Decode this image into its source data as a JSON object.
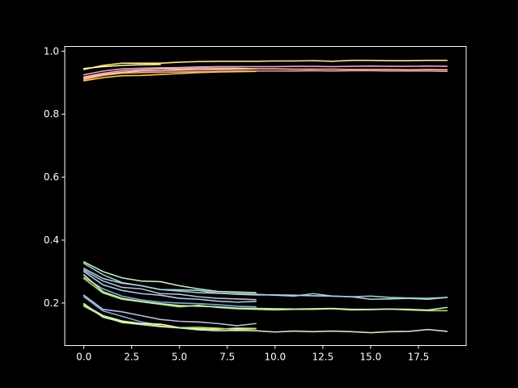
{
  "chart_data": {
    "type": "line",
    "title": "",
    "xlabel": "",
    "ylabel": "",
    "xlim": [
      -1.0,
      20.0
    ],
    "ylim": [
      0.065,
      1.015
    ],
    "grid": false,
    "legend": "none",
    "background": "#000000",
    "axis_color": "#ffffff",
    "x_ticks": [
      0.0,
      2.5,
      5.0,
      7.5,
      10.0,
      12.5,
      15.0,
      17.5
    ],
    "x_tick_labels": [
      "0.0",
      "2.5",
      "5.0",
      "7.5",
      "10.0",
      "12.5",
      "15.0",
      "17.5"
    ],
    "y_ticks": [
      0.2,
      0.4,
      0.6,
      0.8,
      1.0
    ],
    "y_tick_labels": [
      "0.2",
      "0.4",
      "0.6",
      "0.8",
      "1.0"
    ],
    "series": [
      {
        "color": "#fde68a",
        "x": [
          0,
          1,
          2,
          3,
          4,
          5,
          6,
          7,
          8,
          9,
          10,
          11,
          12,
          13,
          14,
          15,
          16,
          17,
          18,
          19
        ],
        "y": [
          0.942,
          0.955,
          0.962,
          0.962,
          0.962,
          0.965,
          0.967,
          0.968,
          0.968,
          0.968,
          0.969,
          0.969,
          0.97,
          0.968,
          0.971,
          0.971,
          0.97,
          0.97,
          0.971,
          0.971
        ]
      },
      {
        "color": "#fbb4ae",
        "x": [
          0,
          1,
          2,
          3,
          4,
          5,
          6,
          7,
          8,
          9,
          10,
          11,
          12,
          13,
          14,
          15,
          16,
          17,
          18,
          19
        ],
        "y": [
          0.918,
          0.93,
          0.938,
          0.941,
          0.944,
          0.944,
          0.946,
          0.946,
          0.946,
          0.944,
          0.944,
          0.943,
          0.943,
          0.943,
          0.942,
          0.942,
          0.942,
          0.941,
          0.942,
          0.941
        ]
      },
      {
        "color": "#e9a3c9",
        "x": [
          0,
          1,
          2,
          3,
          4,
          5,
          6,
          7,
          8,
          9,
          10,
          11,
          12,
          13,
          14,
          15,
          16,
          17,
          18,
          19
        ],
        "y": [
          0.925,
          0.937,
          0.944,
          0.946,
          0.947,
          0.948,
          0.95,
          0.951,
          0.951,
          0.951,
          0.951,
          0.952,
          0.952,
          0.951,
          0.952,
          0.953,
          0.952,
          0.952,
          0.953,
          0.952
        ]
      },
      {
        "color": "#f4a582",
        "x": [
          0,
          1,
          2,
          3,
          4,
          5,
          6,
          7,
          8,
          9,
          10,
          11,
          12,
          13,
          14,
          15,
          16,
          17,
          18,
          19
        ],
        "y": [
          0.91,
          0.923,
          0.93,
          0.932,
          0.933,
          0.934,
          0.935,
          0.936,
          0.937,
          0.937,
          0.937,
          0.937,
          0.938,
          0.937,
          0.938,
          0.938,
          0.937,
          0.937,
          0.937,
          0.936
        ]
      },
      {
        "color": "#fdcdac",
        "x": [
          0,
          1,
          2,
          3,
          4,
          5,
          6,
          7,
          8,
          9
        ],
        "y": [
          0.914,
          0.926,
          0.933,
          0.937,
          0.938,
          0.94,
          0.941,
          0.942,
          0.943,
          0.944
        ]
      },
      {
        "color": "#ffff99",
        "x": [
          0,
          1,
          2,
          3,
          4
        ],
        "y": [
          0.945,
          0.951,
          0.955,
          0.957,
          0.958
        ]
      },
      {
        "color": "#fec44f",
        "x": [
          0,
          1,
          2,
          3,
          4,
          5,
          6,
          7,
          8,
          9
        ],
        "y": [
          0.906,
          0.916,
          0.922,
          0.923,
          0.926,
          0.929,
          0.932,
          0.934,
          0.935,
          0.936
        ]
      },
      {
        "color": "#ccebc5",
        "x": [
          0,
          1,
          2,
          3,
          4,
          5,
          6,
          7,
          8,
          9
        ],
        "y": [
          0.331,
          0.3,
          0.28,
          0.27,
          0.268,
          0.255,
          0.245,
          0.237,
          0.235,
          0.233
        ]
      },
      {
        "color": "#8dd3c7",
        "x": [
          0,
          1,
          2,
          3,
          4,
          5,
          6,
          7,
          8,
          9,
          10,
          11,
          12,
          13,
          14,
          15,
          16,
          17,
          18,
          19
        ],
        "y": [
          0.326,
          0.29,
          0.265,
          0.255,
          0.243,
          0.238,
          0.233,
          0.231,
          0.23,
          0.228,
          0.225,
          0.222,
          0.23,
          0.222,
          0.22,
          0.222,
          0.218,
          0.216,
          0.215,
          0.218
        ]
      },
      {
        "color": "#b3cde3",
        "x": [
          0,
          1,
          2,
          3,
          4,
          5,
          6,
          7,
          8,
          9,
          10,
          11,
          12,
          13,
          14,
          15,
          16,
          17,
          18,
          19
        ],
        "y": [
          0.31,
          0.278,
          0.263,
          0.255,
          0.243,
          0.242,
          0.24,
          0.232,
          0.228,
          0.226,
          0.226,
          0.225,
          0.223,
          0.222,
          0.22,
          0.212,
          0.213,
          0.215,
          0.212,
          0.218
        ]
      },
      {
        "color": "#bebada",
        "x": [
          0,
          1,
          2,
          3,
          4,
          5,
          6,
          7,
          8,
          9
        ],
        "y": [
          0.305,
          0.27,
          0.25,
          0.245,
          0.23,
          0.228,
          0.22,
          0.215,
          0.213,
          0.211
        ]
      },
      {
        "color": "#a6cee3",
        "x": [
          0,
          1,
          2,
          3,
          4,
          5,
          6,
          7,
          8,
          9
        ],
        "y": [
          0.3,
          0.258,
          0.24,
          0.23,
          0.225,
          0.215,
          0.212,
          0.206,
          0.203,
          0.205
        ]
      },
      {
        "color": "#80b1d3",
        "x": [
          0,
          1,
          2,
          3,
          4,
          5,
          6,
          7,
          8,
          9
        ],
        "y": [
          0.282,
          0.245,
          0.222,
          0.21,
          0.203,
          0.2,
          0.198,
          0.195,
          0.19,
          0.188
        ]
      },
      {
        "color": "#b3de69",
        "x": [
          0,
          1,
          2,
          3,
          4,
          5,
          6,
          7,
          8,
          9,
          10,
          11,
          12,
          13,
          14,
          15,
          16,
          17,
          18,
          19
        ],
        "y": [
          0.278,
          0.232,
          0.212,
          0.204,
          0.196,
          0.188,
          0.193,
          0.186,
          0.182,
          0.18,
          0.178,
          0.18,
          0.18,
          0.182,
          0.178,
          0.179,
          0.181,
          0.178,
          0.176,
          0.176
        ]
      },
      {
        "color": "#ccebc5",
        "x": [
          0,
          1,
          2,
          3,
          4,
          5,
          6,
          7,
          8,
          9,
          10,
          11,
          12,
          13,
          14,
          15,
          16,
          17,
          18,
          19
        ],
        "y": [
          0.29,
          0.236,
          0.215,
          0.205,
          0.198,
          0.192,
          0.19,
          0.188,
          0.184,
          0.183,
          0.182,
          0.181,
          0.182,
          0.183,
          0.18,
          0.18,
          0.181,
          0.18,
          0.178,
          0.186
        ]
      },
      {
        "color": "#bebada",
        "x": [
          0,
          1,
          2,
          3,
          4,
          5,
          6,
          7,
          8,
          9
        ],
        "y": [
          0.225,
          0.18,
          0.172,
          0.16,
          0.148,
          0.142,
          0.14,
          0.135,
          0.128,
          0.135
        ]
      },
      {
        "color": "#80b1d3",
        "x": [
          0,
          1,
          2,
          3,
          4
        ],
        "y": [
          0.22,
          0.175,
          0.158,
          0.14,
          0.13
        ]
      },
      {
        "color": "#ffffb3",
        "x": [
          0,
          1,
          2,
          3,
          4,
          5,
          6,
          7,
          8,
          9
        ],
        "y": [
          0.195,
          0.16,
          0.143,
          0.135,
          0.133,
          0.122,
          0.118,
          0.117,
          0.12,
          0.119
        ]
      },
      {
        "color": "#b3de69",
        "x": [
          0,
          1,
          2,
          3,
          4,
          5,
          6,
          7,
          8,
          9
        ],
        "y": [
          0.19,
          0.158,
          0.138,
          0.132,
          0.127,
          0.122,
          0.123,
          0.12,
          0.116,
          0.118
        ]
      },
      {
        "color": "#ccebc5",
        "x": [
          0,
          1,
          2,
          3,
          4,
          5,
          6,
          7,
          8,
          9,
          10,
          11,
          12,
          13,
          14,
          15,
          16,
          17,
          18,
          19
        ],
        "y": [
          0.198,
          0.155,
          0.14,
          0.132,
          0.125,
          0.121,
          0.115,
          0.112,
          0.113,
          0.112,
          0.108,
          0.111,
          0.109,
          0.111,
          0.109,
          0.106,
          0.109,
          0.11,
          0.116,
          0.11
        ]
      }
    ]
  }
}
